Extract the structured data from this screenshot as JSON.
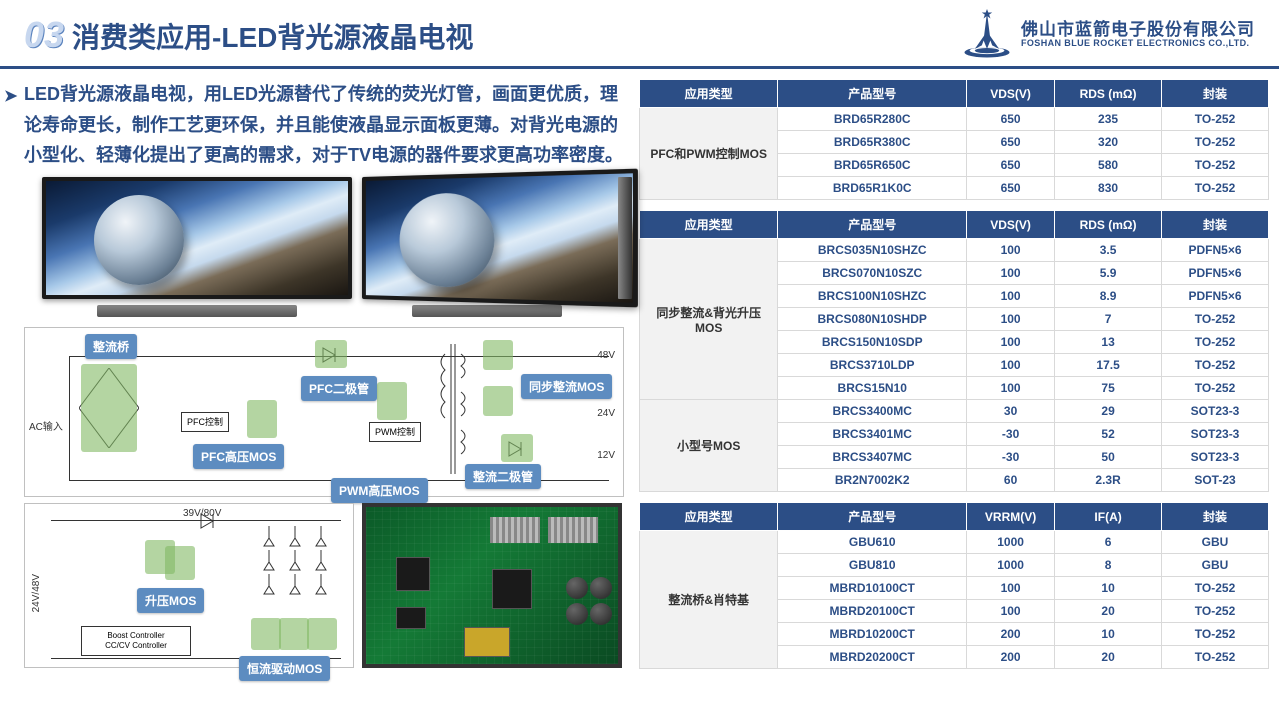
{
  "header": {
    "chapter_num": "03",
    "title": "消费类应用-LED背光源液晶电视",
    "company_cn": "佛山市蓝箭电子股份有限公司",
    "company_en": "FOSHAN BLUE ROCKET ELECTRONICS CO.,LTD."
  },
  "description": "LED背光源液晶电视，用LED光源替代了传统的荧光灯管，画面更优质，理论寿命更长，制作工艺更环保，并且能使液晶显示面板更薄。对背光电源的小型化、轻薄化提出了更高的需求，对于TV电源的器件要求更高功率密度。",
  "circuit_tags": {
    "t1": "整流桥",
    "t2": "PFC二极管",
    "t3": "PFC高压MOS",
    "t4": "PWM高压MOS",
    "t5": "同步整流MOS",
    "t6": "整流二极管",
    "t7": "升压MOS",
    "t8": "恒流驱动MOS"
  },
  "circuit_labels": {
    "ac_in": "AC输入",
    "pfc_ctrl": "PFC控制",
    "pwm_ctrl": "PWM控制",
    "v48": "48V",
    "v24": "24V",
    "v12": "12V",
    "v24_48": "24V/48V",
    "v39_80": "39V/80V",
    "boost": "Boost Controller\nCC/CV Controller"
  },
  "colors": {
    "header_blue": "#2c4e86",
    "tag_blue": "#5d8cc0",
    "hl_green": "rgba(130,185,100,.6)",
    "row_border": "#d9d9d9",
    "cell_text": "#2c4e86"
  },
  "table1": {
    "headers": [
      "应用类型",
      "产品型号",
      "VDS(V)",
      "RDS (mΩ)",
      "封装"
    ],
    "category": "PFC和PWM控制MOS",
    "rows": [
      [
        "BRD65R280C",
        "650",
        "235",
        "TO-252"
      ],
      [
        "BRD65R380C",
        "650",
        "320",
        "TO-252"
      ],
      [
        "BRD65R650C",
        "650",
        "580",
        "TO-252"
      ],
      [
        "BRD65R1K0C",
        "650",
        "830",
        "TO-252"
      ]
    ]
  },
  "table2": {
    "headers": [
      "应用类型",
      "产品型号",
      "VDS(V)",
      "RDS (mΩ)",
      "封装"
    ],
    "groups": [
      {
        "category": "同步整流&背光升压MOS",
        "rows": [
          [
            "BRCS035N10SHZC",
            "100",
            "3.5",
            "PDFN5×6"
          ],
          [
            "BRCS070N10SZC",
            "100",
            "5.9",
            "PDFN5×6"
          ],
          [
            "BRCS100N10SHZC",
            "100",
            "8.9",
            "PDFN5×6"
          ],
          [
            "BRCS080N10SHDP",
            "100",
            "7",
            "TO-252"
          ],
          [
            "BRCS150N10SDP",
            "100",
            "13",
            "TO-252"
          ],
          [
            "BRCS3710LDP",
            "100",
            "17.5",
            "TO-252"
          ],
          [
            "BRCS15N10",
            "100",
            "75",
            "TO-252"
          ]
        ]
      },
      {
        "category": "小型号MOS",
        "rows": [
          [
            "BRCS3400MC",
            "30",
            "29",
            "SOT23-3"
          ],
          [
            "BRCS3401MC",
            "-30",
            "52",
            "SOT23-3"
          ],
          [
            "BRCS3407MC",
            "-30",
            "50",
            "SOT23-3"
          ],
          [
            "BR2N7002K2",
            "60",
            "2.3R",
            "SOT-23"
          ]
        ]
      }
    ]
  },
  "table3": {
    "headers": [
      "应用类型",
      "产品型号",
      "VRRM(V)",
      "IF(A)",
      "封装"
    ],
    "category": "整流桥&肖特基",
    "rows": [
      [
        "GBU610",
        "1000",
        "6",
        "GBU"
      ],
      [
        "GBU810",
        "1000",
        "8",
        "GBU"
      ],
      [
        "MBRD10100CT",
        "100",
        "10",
        "TO-252"
      ],
      [
        "MBRD20100CT",
        "100",
        "20",
        "TO-252"
      ],
      [
        "MBRD10200CT",
        "200",
        "10",
        "TO-252"
      ],
      [
        "MBRD20200CT",
        "200",
        "20",
        "TO-252"
      ]
    ]
  }
}
